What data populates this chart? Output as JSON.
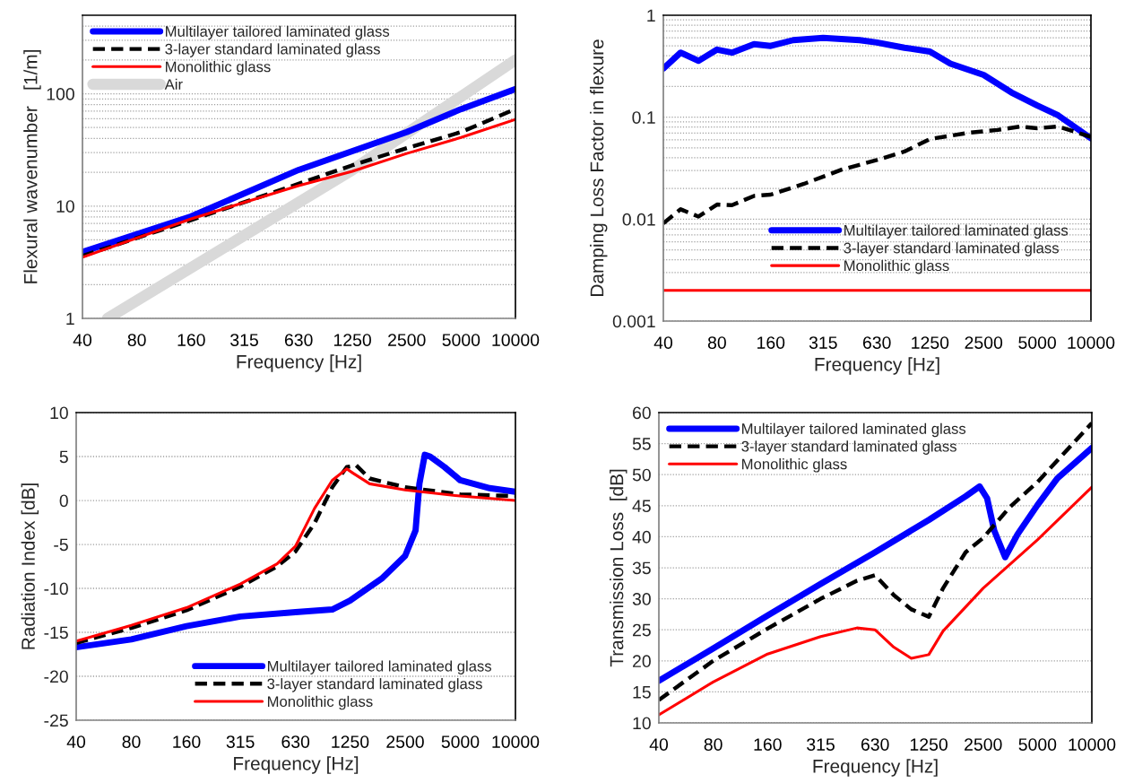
{
  "chart_data": [
    {
      "type": "line",
      "xlabel": "Frequency [Hz]",
      "ylabel": "Flexural wavenumber   [1/m]",
      "log": "xy",
      "grid": "y",
      "legend": "top left",
      "xlim": [
        40,
        10000
      ],
      "xticks": [
        40,
        80,
        160,
        315,
        630,
        1250,
        2500,
        5000,
        10000
      ],
      "ylim": [
        1,
        500
      ],
      "yticks": [
        1,
        {
          "value": 2,
          "label": null
        },
        {
          "value": 3,
          "label": null
        },
        {
          "value": 4,
          "label": null
        },
        {
          "value": 5,
          "label": null
        },
        {
          "value": 6,
          "label": null
        },
        {
          "value": 7,
          "label": null
        },
        {
          "value": 8,
          "label": null
        },
        {
          "value": 9,
          "label": null
        },
        10,
        {
          "value": 20,
          "label": null
        },
        {
          "value": 30,
          "label": null
        },
        {
          "value": 40,
          "label": null
        },
        {
          "value": 50,
          "label": null
        },
        {
          "value": 60,
          "label": null
        },
        {
          "value": 70,
          "label": null
        },
        {
          "value": 80,
          "label": null
        },
        {
          "value": 90,
          "label": null
        },
        100,
        {
          "value": 200,
          "label": null
        },
        {
          "value": 300,
          "label": null
        },
        {
          "value": 400,
          "label": null
        }
      ],
      "series": [
        {
          "name": "Multilayer tailored laminated glass",
          "color": "#0000ff",
          "line_style": "solid",
          "x": [
            40,
            160,
            630,
            2500,
            5000,
            10000
          ],
          "values": [
            3.9,
            8.1,
            21,
            45.6,
            73,
            110
          ]
        },
        {
          "name": "3-layer standard laminated glass",
          "color": "#000000",
          "line_style": "dashed",
          "x": [
            40,
            160,
            630,
            1250,
            2500,
            5000,
            10000
          ],
          "values": [
            3.6,
            7.5,
            15.8,
            23.1,
            32.8,
            45.6,
            73
          ]
        },
        {
          "name": "Monolithic glass",
          "color": "#ff0000",
          "line_style": "solid",
          "x": [
            40,
            160,
            630,
            1250,
            2500,
            5000,
            10000
          ],
          "values": [
            3.5,
            7.7,
            15.2,
            20.4,
            29.4,
            40.8,
            59
          ]
        },
        {
          "name": "Air",
          "color": "#d9d9d9",
          "line_style": "solid",
          "x": [
            55,
            1250,
            10000
          ],
          "values": [
            1.0,
            21,
            200
          ]
        }
      ]
    },
    {
      "type": "line",
      "xlabel": "Frequency [Hz]",
      "ylabel": "Damping Loss Factor in flexure",
      "log": "xy",
      "grid": "y",
      "legend": "bottom",
      "xlim": [
        40,
        10000
      ],
      "xticks": [
        40,
        80,
        160,
        315,
        630,
        1250,
        2500,
        5000,
        10000
      ],
      "ylim": [
        0.001,
        1
      ],
      "yticks": [
        0.001,
        {
          "value": 0.002,
          "label": null
        },
        {
          "value": 0.003,
          "label": null
        },
        {
          "value": 0.004,
          "label": null
        },
        {
          "value": 0.005,
          "label": null
        },
        {
          "value": 0.006,
          "label": null
        },
        {
          "value": 0.007,
          "label": null
        },
        {
          "value": 0.008,
          "label": null
        },
        {
          "value": 0.009,
          "label": null
        },
        0.01,
        {
          "value": 0.02,
          "label": null
        },
        {
          "value": 0.03,
          "label": null
        },
        {
          "value": 0.04,
          "label": null
        },
        {
          "value": 0.05,
          "label": null
        },
        {
          "value": 0.06,
          "label": null
        },
        {
          "value": 0.07,
          "label": null
        },
        {
          "value": 0.08,
          "label": null
        },
        {
          "value": 0.09,
          "label": null
        },
        0.1,
        {
          "value": 0.2,
          "label": null
        },
        {
          "value": 0.3,
          "label": null
        },
        {
          "value": 0.4,
          "label": null
        },
        {
          "value": 0.5,
          "label": null
        },
        {
          "value": 0.6,
          "label": null
        },
        {
          "value": 0.7,
          "label": null
        },
        {
          "value": 0.8,
          "label": null
        },
        {
          "value": 0.9,
          "label": null
        },
        1
      ],
      "series": [
        {
          "name": "Multilayer tailored laminated glass",
          "color": "#0000ff",
          "line_style": "solid",
          "x": [
            40,
            50,
            63,
            80,
            97,
            129,
            160,
            214,
            315,
            504,
            630,
            900,
            1250,
            1630,
            2500,
            3580,
            5000,
            6560,
            10000
          ],
          "values": [
            0.3,
            0.43,
            0.357,
            0.46,
            0.43,
            0.52,
            0.5,
            0.57,
            0.6,
            0.57,
            0.54,
            0.48,
            0.44,
            0.335,
            0.26,
            0.175,
            0.13,
            0.104,
            0.062
          ]
        },
        {
          "name": "3-layer standard laminated glass",
          "color": "#000000",
          "line_style": "dashed",
          "x": [
            40,
            50,
            63,
            80,
            97,
            129,
            160,
            246,
            400,
            630,
            900,
            1250,
            2020,
            3000,
            4000,
            5000,
            6560,
            10000
          ],
          "values": [
            0.0091,
            0.0125,
            0.0106,
            0.0139,
            0.0137,
            0.0169,
            0.0174,
            0.0222,
            0.0306,
            0.038,
            0.046,
            0.061,
            0.07,
            0.075,
            0.081,
            0.078,
            0.081,
            0.064
          ]
        },
        {
          "name": "Monolithic glass",
          "color": "#ff0000",
          "line_style": "solid",
          "x": [
            40,
            10000
          ],
          "values": [
            0.002,
            0.002
          ]
        }
      ]
    },
    {
      "type": "line",
      "xlabel": "Frequency [Hz]",
      "ylabel": "Radiation Index [dB]",
      "log": "x",
      "grid": "y",
      "legend": "bottom right",
      "xlim": [
        40,
        10000
      ],
      "xticks": [
        40,
        80,
        160,
        315,
        630,
        1250,
        2500,
        5000,
        10000
      ],
      "ylim": [
        -25,
        10
      ],
      "yticks": [
        -25,
        -20,
        -15,
        -10,
        -5,
        0,
        5,
        10
      ],
      "series": [
        {
          "name": "Multilayer tailored laminated glass",
          "color": "#0000ff",
          "line_style": "solid",
          "x": [
            40,
            80,
            160,
            315,
            630,
            1000,
            1250,
            1860,
            2500,
            2850,
            2990,
            3200,
            3420,
            4100,
            5000,
            7240,
            10000
          ],
          "values": [
            -16.7,
            -15.8,
            -14.3,
            -13.2,
            -12.7,
            -12.4,
            -11.4,
            -8.9,
            -6.3,
            -3.4,
            1.9,
            5.2,
            5.0,
            3.8,
            2.3,
            1.4,
            1.0
          ]
        },
        {
          "name": "3-layer standard laminated glass",
          "color": "#000000",
          "line_style": "dashed",
          "x": [
            40,
            80,
            160,
            315,
            500,
            630,
            800,
            1000,
            1200,
            1350,
            1600,
            2500,
            5000,
            10000
          ],
          "values": [
            -16.2,
            -14.5,
            -12.5,
            -9.8,
            -7.5,
            -5.8,
            -2.6,
            1.5,
            3.8,
            4.0,
            2.5,
            1.5,
            0.7,
            0.5
          ]
        },
        {
          "name": "Monolithic glass",
          "color": "#ff0000",
          "line_style": "solid",
          "x": [
            40,
            80,
            160,
            315,
            500,
            630,
            800,
            1000,
            1200,
            1300,
            1600,
            2500,
            5000,
            10000
          ],
          "values": [
            -16.0,
            -14.2,
            -12.2,
            -9.5,
            -7.2,
            -5.2,
            -0.9,
            2.3,
            3.6,
            3.1,
            1.9,
            1.2,
            0.5,
            0.0
          ]
        }
      ]
    },
    {
      "type": "line",
      "xlabel": "Frequency [Hz]",
      "ylabel": "Transmission Loss  [dB]",
      "log": "x",
      "grid": "y",
      "legend": "top left",
      "xlim": [
        40,
        10000
      ],
      "xticks": [
        40,
        80,
        160,
        315,
        630,
        1250,
        2500,
        5000,
        10000
      ],
      "ylim": [
        10,
        60
      ],
      "yticks": [
        10,
        15,
        20,
        25,
        30,
        35,
        40,
        45,
        50,
        55,
        60
      ],
      "series": [
        {
          "name": "Multilayer tailored laminated glass",
          "color": "#0000ff",
          "line_style": "solid",
          "x": [
            40,
            80,
            160,
            315,
            630,
            1250,
            2000,
            2390,
            2630,
            2880,
            3310,
            3880,
            5000,
            6440,
            10000
          ],
          "values": [
            16.8,
            22.0,
            27.3,
            32.4,
            37.5,
            42.7,
            46.5,
            48.1,
            46.2,
            41.0,
            36.7,
            40.4,
            45.1,
            49.4,
            54.3
          ]
        },
        {
          "name": "3-layer standard laminated glass",
          "color": "#000000",
          "line_style": "dashed",
          "x": [
            40,
            80,
            160,
            315,
            500,
            630,
            800,
            1000,
            1250,
            1500,
            2000,
            2500,
            3520,
            5000,
            10000
          ],
          "values": [
            13.7,
            20.0,
            25.2,
            30.0,
            32.9,
            33.8,
            30.6,
            28.3,
            27.1,
            31.7,
            37.5,
            39.8,
            44.8,
            48.8,
            58.3
          ]
        },
        {
          "name": "Monolithic glass",
          "color": "#ff0000",
          "line_style": "solid",
          "x": [
            40,
            80,
            160,
            315,
            500,
            630,
            800,
            1000,
            1250,
            1500,
            2500,
            5000,
            10000
          ],
          "values": [
            11.3,
            16.6,
            21.1,
            23.9,
            25.3,
            25.0,
            22.2,
            20.4,
            21.0,
            24.8,
            31.7,
            39.5,
            48.0
          ]
        }
      ]
    }
  ]
}
